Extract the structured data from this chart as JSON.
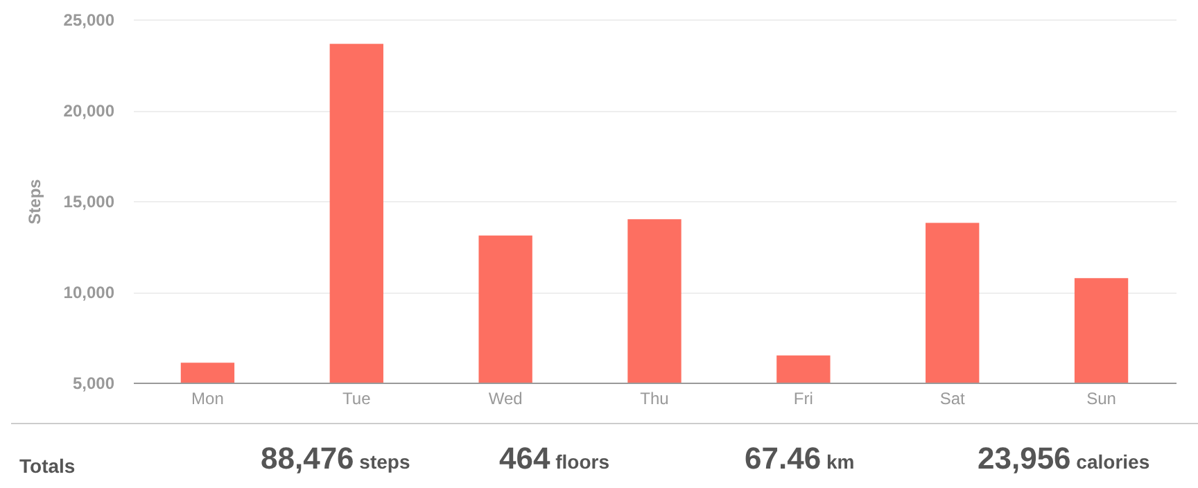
{
  "chart_data": {
    "type": "bar",
    "ylabel": "Steps",
    "categories": [
      "Mon",
      "Tue",
      "Wed",
      "Thu",
      "Fri",
      "Sat",
      "Sun"
    ],
    "values": [
      6100,
      23650,
      13100,
      14000,
      6500,
      13800,
      10750
    ],
    "color": "#fd6f61",
    "ylim": [
      5000,
      25000
    ],
    "yticks": [
      {
        "value": 5000,
        "label": "5,000"
      },
      {
        "value": 10000,
        "label": "10,000"
      },
      {
        "value": 15000,
        "label": "15,000"
      },
      {
        "value": 20000,
        "label": "20,000"
      },
      {
        "value": 25000,
        "label": "25,000"
      }
    ],
    "grid": "y",
    "annotations": [
      "Totals",
      "88,476 steps",
      "464 floors",
      "67.46 km",
      "23,956 calories"
    ]
  }
}
